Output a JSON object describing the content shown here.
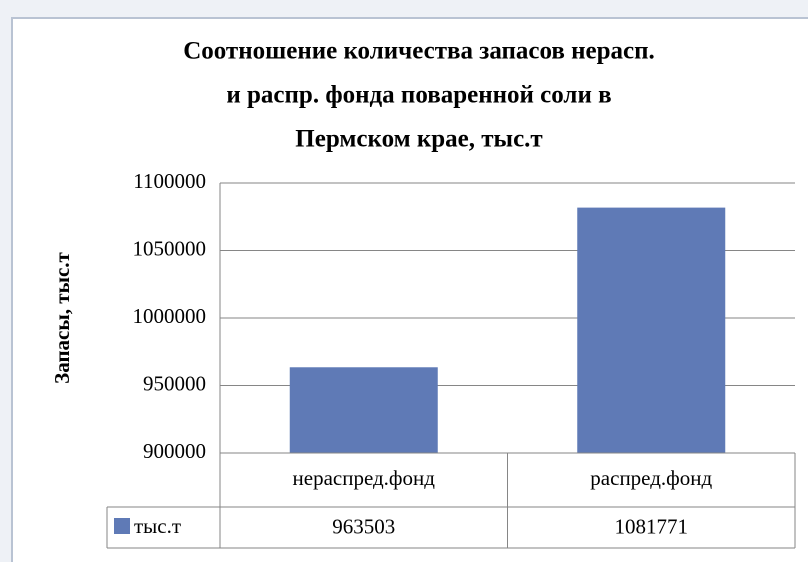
{
  "chart_data": {
    "type": "bar",
    "title": [
      "Соотношение количества запасов нерасп.",
      "и распр. фонда поваренной соли в",
      "Пермском крае, тыс.т"
    ],
    "y_label": "Запасы, тыс.т",
    "categories": [
      "нераспред.фонд",
      "распред.фонд"
    ],
    "series": [
      {
        "name": "тыс.т",
        "color": "#5f7ab6",
        "values": [
          963503,
          1081771
        ]
      }
    ],
    "ylim": [
      900000,
      1100000
    ],
    "yticks": [
      900000,
      950000,
      1000000,
      1050000,
      1100000
    ],
    "grid": true,
    "data_table": true
  }
}
